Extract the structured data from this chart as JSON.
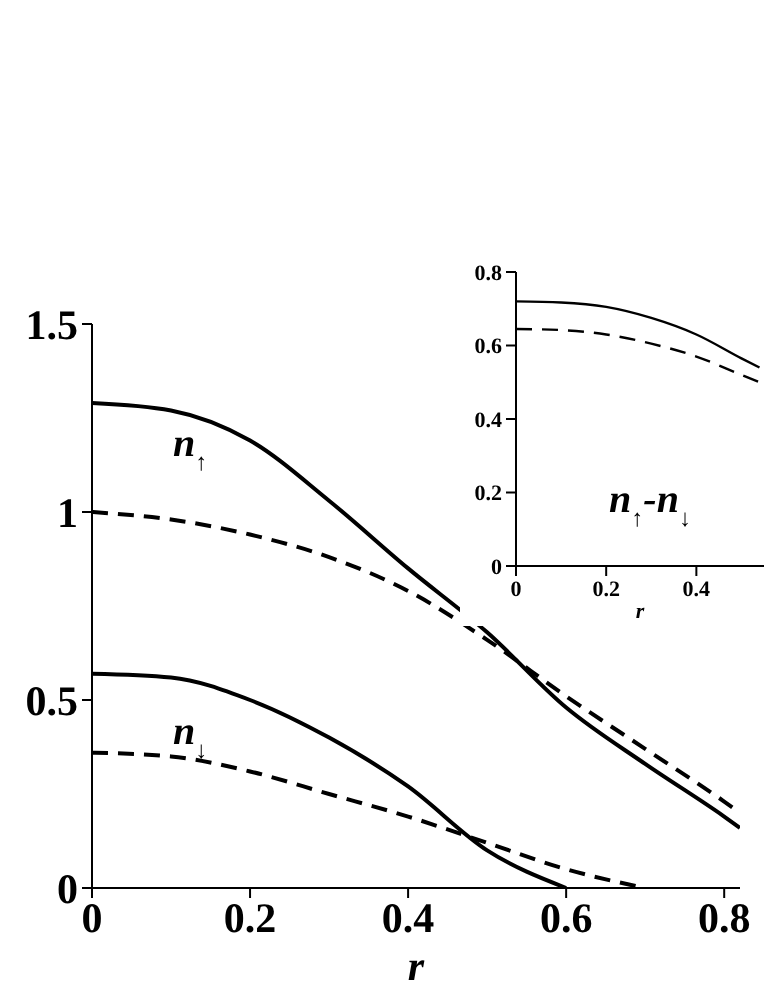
{
  "chart_data": [
    {
      "type": "line",
      "xlabel": "r",
      "xlim": [
        0,
        0.82
      ],
      "ylim": [
        0,
        1.5
      ],
      "xticks": [
        0,
        0.2,
        0.4,
        0.6,
        0.8
      ],
      "yticks": [
        0,
        0.5,
        1,
        1.5
      ],
      "marker": "none",
      "series": [
        {
          "color": "#000000",
          "line_style": "solid",
          "x": [
            0,
            0.1,
            0.2,
            0.3,
            0.4,
            0.5,
            0.6,
            0.7,
            0.8,
            0.82
          ],
          "values": [
            1.29,
            1.27,
            1.19,
            1.03,
            0.85,
            0.68,
            0.48,
            0.33,
            0.19,
            0.16
          ]
        },
        {
          "color": "#000000",
          "line_style": "dashed",
          "x": [
            0,
            0.1,
            0.2,
            0.3,
            0.4,
            0.5,
            0.6,
            0.7,
            0.8,
            0.82
          ],
          "values": [
            1.0,
            0.98,
            0.94,
            0.88,
            0.79,
            0.66,
            0.51,
            0.37,
            0.23,
            0.2
          ]
        },
        {
          "color": "#000000",
          "line_style": "solid",
          "x": [
            0,
            0.1,
            0.2,
            0.3,
            0.4,
            0.5,
            0.6
          ],
          "values": [
            0.57,
            0.56,
            0.5,
            0.4,
            0.27,
            0.1,
            0.0
          ]
        },
        {
          "color": "#000000",
          "line_style": "dashed",
          "x": [
            0,
            0.1,
            0.2,
            0.3,
            0.4,
            0.5,
            0.6,
            0.7
          ],
          "values": [
            0.36,
            0.35,
            0.31,
            0.25,
            0.19,
            0.12,
            0.05,
            0.0
          ]
        }
      ],
      "annotations": [
        "n$_{↑}$",
        "n$_{↓}$"
      ]
    },
    {
      "type": "line",
      "xlabel": "r",
      "xlim": [
        0,
        0.55
      ],
      "ylim": [
        0,
        0.8
      ],
      "xticks": [
        0,
        0.2,
        0.4
      ],
      "yticks": [
        0,
        0.2,
        0.4,
        0.6,
        0.8
      ],
      "marker": "none",
      "series": [
        {
          "color": "#000000",
          "line_style": "solid",
          "x": [
            0,
            0.1,
            0.2,
            0.3,
            0.4,
            0.5,
            0.54
          ],
          "values": [
            0.72,
            0.717,
            0.705,
            0.675,
            0.63,
            0.565,
            0.54
          ]
        },
        {
          "color": "#000000",
          "line_style": "dashed",
          "x": [
            0,
            0.1,
            0.2,
            0.3,
            0.4,
            0.5,
            0.54
          ],
          "values": [
            0.645,
            0.642,
            0.63,
            0.605,
            0.57,
            0.52,
            0.5
          ]
        }
      ],
      "annotations": [
        "n$_{↑}$-n$_{↓}$"
      ]
    }
  ]
}
